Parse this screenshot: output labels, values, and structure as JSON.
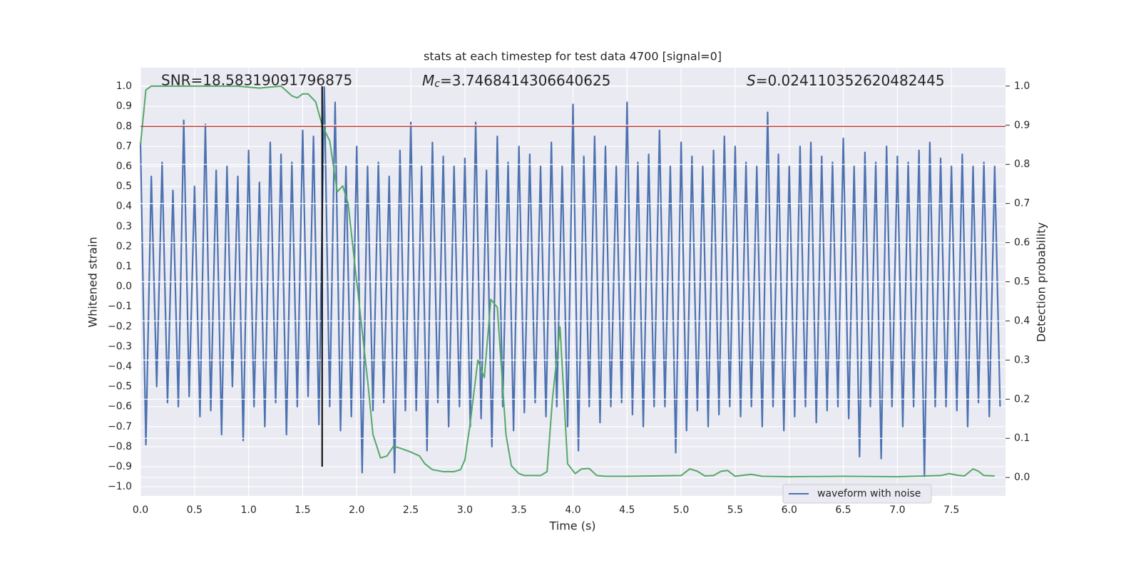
{
  "chart_data": {
    "type": "line",
    "title": "stats at each timestep for test data 4700 [signal=0]",
    "xlabel": "Time (s)",
    "ylabel": "Whitened strain",
    "y2label": "Detection probability",
    "xlim": [
      0,
      8.0
    ],
    "ylim": [
      -1.046,
      1.093
    ],
    "y2lim": [
      -0.047,
      1.047
    ],
    "xticks": [
      {
        "value": 0,
        "label": "0.0"
      },
      0.5,
      {
        "value": 1,
        "label": "1.0"
      },
      1.5,
      {
        "value": 2,
        "label": "2.0"
      },
      2.5,
      {
        "value": 3,
        "label": "3.0"
      },
      3.5,
      {
        "value": 4,
        "label": "4.0"
      },
      4.5,
      {
        "value": 5,
        "label": "5.0"
      },
      5.5,
      {
        "value": 6,
        "label": "6.0"
      },
      6.5,
      {
        "value": 7,
        "label": "7.0"
      },
      7.5
    ],
    "yticks": [
      {
        "value": -1,
        "label": "−1.0"
      },
      {
        "value": -0.9,
        "label": "−0.9"
      },
      {
        "value": -0.8,
        "label": "−0.8"
      },
      {
        "value": -0.7,
        "label": "−0.7"
      },
      {
        "value": -0.6,
        "label": "−0.6"
      },
      {
        "value": -0.5,
        "label": "−0.5"
      },
      {
        "value": -0.4,
        "label": "−0.4"
      },
      {
        "value": -0.3,
        "label": "−0.3"
      },
      {
        "value": -0.2,
        "label": "−0.2"
      },
      {
        "value": -0.1,
        "label": "−0.1"
      },
      {
        "value": 0,
        "label": "0.0"
      },
      0.1,
      0.2,
      0.3,
      0.4,
      0.5,
      0.6,
      0.7,
      0.8,
      0.9,
      {
        "value": 1,
        "label": "1.0"
      }
    ],
    "y2ticks": [
      {
        "value": 0,
        "label": "0.0"
      },
      0.1,
      0.2,
      0.3,
      0.4,
      0.5,
      0.6,
      0.7,
      0.8,
      0.9,
      {
        "value": 1,
        "label": "1.0"
      }
    ],
    "grid": true,
    "legend": "lower right",
    "annotations": [
      {
        "text": "SNR=18.58319091796875"
      },
      {
        "symbol": "M",
        "sub": "c",
        "text": "=3.7468414306640625"
      },
      {
        "symbol": "S",
        "text": "=0.024110352620482445"
      }
    ],
    "hline": {
      "y": 0.8,
      "color": "#c03a3a"
    },
    "vline": {
      "x": 1.68,
      "ymin": -0.9,
      "ymax": 1.0,
      "color": "#000000"
    },
    "series": [
      {
        "name": "waveform with noise",
        "color": "#4c72b0",
        "x": [
          0,
          0.05,
          0.1,
          0.15,
          0.2,
          0.25,
          0.3,
          0.35,
          0.4,
          0.45,
          0.5,
          0.55,
          0.6,
          0.65,
          0.7,
          0.75,
          0.8,
          0.85,
          0.9,
          0.95,
          1,
          1.05,
          1.1,
          1.15,
          1.2,
          1.25,
          1.3,
          1.35,
          1.4,
          1.45,
          1.5,
          1.55,
          1.6,
          1.65,
          1.7,
          1.75,
          1.8,
          1.85,
          1.9,
          1.95,
          2,
          2.05,
          2.1,
          2.15,
          2.2,
          2.25,
          2.3,
          2.35,
          2.4,
          2.45,
          2.5,
          2.55,
          2.6,
          2.65,
          2.7,
          2.75,
          2.8,
          2.85,
          2.9,
          2.95,
          3,
          3.05,
          3.1,
          3.15,
          3.2,
          3.25,
          3.3,
          3.35,
          3.4,
          3.45,
          3.5,
          3.55,
          3.6,
          3.65,
          3.7,
          3.75,
          3.8,
          3.85,
          3.9,
          3.95,
          4,
          4.05,
          4.1,
          4.15,
          4.2,
          4.25,
          4.3,
          4.35,
          4.4,
          4.45,
          4.5,
          4.55,
          4.6,
          4.65,
          4.7,
          4.75,
          4.8,
          4.85,
          4.9,
          4.95,
          5,
          5.05,
          5.1,
          5.15,
          5.2,
          5.25,
          5.3,
          5.35,
          5.4,
          5.45,
          5.5,
          5.55,
          5.6,
          5.65,
          5.7,
          5.75,
          5.8,
          5.85,
          5.9,
          5.95,
          6,
          6.05,
          6.1,
          6.15,
          6.2,
          6.25,
          6.3,
          6.35,
          6.4,
          6.45,
          6.5,
          6.55,
          6.6,
          6.65,
          6.7,
          6.75,
          6.8,
          6.85,
          6.9,
          6.95,
          7,
          7.05,
          7.1,
          7.15,
          7.2,
          7.25,
          7.3,
          7.35,
          7.4,
          7.45,
          7.5,
          7.55,
          7.6,
          7.65,
          7.7,
          7.75,
          7.8,
          7.85,
          7.9,
          7.95
        ],
        "values": [
          0.72,
          -0.79,
          0.55,
          -0.5,
          0.62,
          -0.58,
          0.48,
          -0.6,
          0.83,
          -0.55,
          0.5,
          -0.65,
          0.81,
          -0.62,
          0.58,
          -0.74,
          0.6,
          -0.5,
          0.55,
          -0.77,
          0.68,
          -0.6,
          0.52,
          -0.7,
          0.72,
          -0.58,
          0.66,
          -0.74,
          0.62,
          -0.6,
          0.78,
          -0.55,
          0.75,
          -0.69,
          1.0,
          -0.6,
          0.92,
          -0.72,
          0.6,
          -0.65,
          0.7,
          -0.93,
          0.6,
          -0.62,
          0.62,
          -0.58,
          0.55,
          -0.93,
          0.68,
          -0.62,
          0.82,
          -0.62,
          0.6,
          -0.82,
          0.72,
          -0.58,
          0.65,
          -0.7,
          0.6,
          -0.6,
          0.64,
          -0.7,
          0.82,
          -0.66,
          0.58,
          -0.8,
          0.75,
          -0.6,
          0.62,
          -0.72,
          0.7,
          -0.63,
          0.66,
          -0.58,
          0.6,
          -0.65,
          0.72,
          -0.6,
          0.6,
          -0.7,
          0.91,
          -0.82,
          0.65,
          -0.6,
          0.75,
          -0.68,
          0.7,
          -0.6,
          0.6,
          -0.58,
          0.92,
          -0.64,
          0.62,
          -0.7,
          0.66,
          -0.6,
          0.78,
          -0.6,
          0.6,
          -0.83,
          0.72,
          -0.72,
          0.65,
          -0.62,
          0.6,
          -0.7,
          0.68,
          -0.64,
          0.75,
          -0.6,
          0.7,
          -0.65,
          0.62,
          -0.6,
          0.6,
          -0.7,
          0.87,
          -0.6,
          0.66,
          -0.72,
          0.6,
          -0.65,
          0.7,
          -0.6,
          0.72,
          -0.68,
          0.65,
          -0.62,
          0.62,
          -0.6,
          0.74,
          -0.66,
          0.6,
          -0.85,
          0.67,
          -0.6,
          0.62,
          -0.86,
          0.7,
          -0.6,
          0.65,
          -0.7,
          0.62,
          -0.6,
          0.68,
          -0.95,
          0.72,
          -0.6,
          0.64,
          -0.6,
          0.6,
          -0.62,
          0.66,
          -0.7,
          0.6,
          -0.58,
          0.62,
          -0.65,
          0.6,
          -0.6
        ]
      },
      {
        "color": "#55a868",
        "axis": "y2",
        "x": [
          0,
          0.05,
          0.1,
          0.3,
          0.6,
          0.9,
          1.1,
          1.3,
          1.4,
          1.45,
          1.5,
          1.55,
          1.62,
          1.68,
          1.75,
          1.82,
          1.87,
          1.92,
          2.0,
          2.1,
          2.15,
          2.22,
          2.28,
          2.34,
          2.4,
          2.5,
          2.58,
          2.63,
          2.7,
          2.8,
          2.9,
          2.96,
          3.0,
          3.05,
          3.12,
          3.18,
          3.24,
          3.3,
          3.38,
          3.43,
          3.5,
          3.55,
          3.7,
          3.76,
          3.81,
          3.88,
          3.95,
          4.02,
          4.08,
          4.15,
          4.22,
          4.3,
          4.5,
          5.0,
          5.08,
          5.15,
          5.22,
          5.3,
          5.37,
          5.43,
          5.5,
          5.58,
          5.65,
          5.75,
          6.0,
          6.5,
          7.0,
          7.4,
          7.48,
          7.55,
          7.62,
          7.7,
          7.75,
          7.8,
          7.9
        ],
        "values": [
          0.85,
          0.99,
          1.0,
          1.0,
          1.0,
          1.0,
          0.995,
          1.0,
          0.975,
          0.97,
          0.98,
          0.98,
          0.96,
          0.9,
          0.86,
          0.73,
          0.745,
          0.7,
          0.5,
          0.25,
          0.11,
          0.05,
          0.055,
          0.08,
          0.075,
          0.065,
          0.055,
          0.035,
          0.02,
          0.015,
          0.015,
          0.02,
          0.045,
          0.14,
          0.3,
          0.255,
          0.455,
          0.435,
          0.11,
          0.03,
          0.01,
          0.005,
          0.005,
          0.015,
          0.2,
          0.385,
          0.035,
          0.01,
          0.022,
          0.023,
          0.005,
          0.003,
          0.003,
          0.005,
          0.022,
          0.016,
          0.004,
          0.005,
          0.016,
          0.018,
          0.003,
          0.006,
          0.008,
          0.003,
          0.002,
          0.003,
          0.002,
          0.005,
          0.01,
          0.006,
          0.004,
          0.022,
          0.016,
          0.005,
          0.004
        ]
      }
    ]
  }
}
